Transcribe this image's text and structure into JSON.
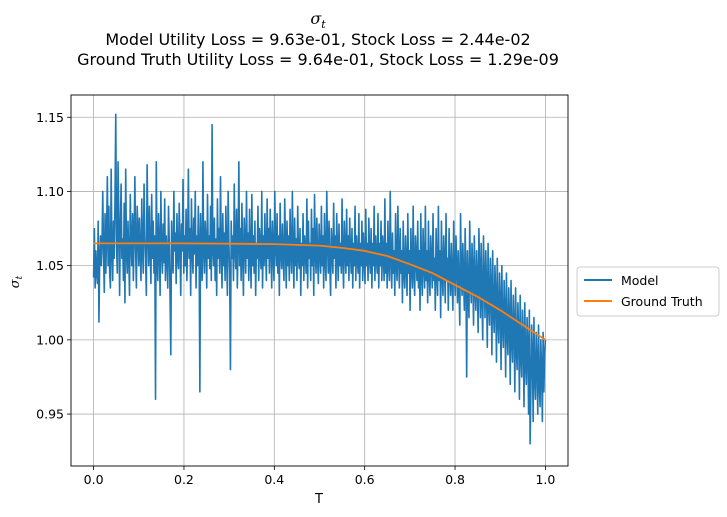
{
  "chart_data": {
    "type": "line",
    "title": "σt",
    "subtitle_lines": [
      "Model Utility Loss = 9.63e-01, Stock Loss = 2.44e-02",
      "Ground Truth Utility Loss = 9.64e-01, Stock Loss = 1.29e-09"
    ],
    "xlabel": "T",
    "ylabel": "σt",
    "xlim": [
      -0.05,
      1.05
    ],
    "ylim": [
      0.915,
      1.165
    ],
    "xticks": [
      0.0,
      0.2,
      0.4,
      0.6,
      0.8,
      1.0
    ],
    "xtick_labels": [
      "0.0",
      "0.2",
      "0.4",
      "0.6",
      "0.8",
      "1.0"
    ],
    "yticks": [
      0.95,
      1.0,
      1.05,
      1.1,
      1.15
    ],
    "ytick_labels": [
      "0.95",
      "1.00",
      "1.05",
      "1.10",
      "1.15"
    ],
    "grid": true,
    "legend_placement": "outside-right",
    "series": [
      {
        "name": "Model",
        "color": "#1f77b4",
        "x_start": 0.0,
        "x_end": 1.0,
        "values": [
          1.042,
          1.075,
          1.035,
          1.06,
          1.045,
          1.038,
          1.08,
          1.012,
          1.055,
          1.07,
          1.05,
          1.065,
          1.1,
          1.058,
          1.032,
          1.085,
          1.045,
          1.072,
          1.11,
          1.05,
          1.09,
          1.045,
          1.035,
          1.115,
          1.06,
          1.04,
          1.08,
          1.055,
          1.095,
          1.152,
          1.065,
          1.045,
          1.12,
          1.085,
          1.03,
          1.075,
          1.105,
          1.055,
          1.068,
          1.04,
          1.092,
          1.025,
          1.115,
          1.06,
          1.045,
          1.08,
          1.055,
          1.03,
          1.098,
          1.065,
          1.05,
          1.085,
          1.04,
          1.07,
          1.11,
          1.06,
          1.035,
          1.09,
          1.075,
          1.05,
          1.082,
          1.058,
          1.04,
          1.095,
          1.06,
          1.045,
          1.105,
          1.07,
          1.055,
          1.03,
          1.118,
          1.075,
          1.05,
          1.09,
          1.06,
          1.038,
          1.098,
          1.055,
          1.08,
          1.045,
          1.07,
          0.96,
          1.12,
          1.055,
          1.04,
          1.085,
          1.065,
          1.03,
          1.1,
          1.06,
          1.045,
          1.078,
          1.052,
          1.095,
          1.04,
          1.07,
          1.058,
          1.035,
          1.09,
          1.065,
          1.03,
          0.99,
          1.08,
          1.055,
          1.045,
          1.1,
          1.06,
          1.072,
          1.038,
          1.085,
          1.055,
          1.048,
          1.092,
          1.065,
          1.03,
          1.078,
          1.06,
          1.108,
          1.045,
          1.07,
          1.05,
          1.088,
          1.04,
          1.065,
          1.115,
          1.055,
          1.075,
          1.03,
          1.095,
          1.06,
          1.045,
          1.082,
          1.058,
          1.1,
          1.035,
          1.07,
          1.05,
          1.09,
          1.065,
          0.965,
          1.085,
          1.055,
          1.04,
          1.12,
          1.06,
          1.045,
          1.08,
          1.065,
          1.035,
          1.098,
          1.055,
          1.07,
          1.048,
          1.09,
          1.04,
          1.145,
          1.06,
          1.05,
          1.082,
          1.04,
          1.068,
          1.03,
          1.095,
          1.055,
          1.075,
          1.045,
          1.11,
          1.06,
          1.035,
          1.085,
          1.05,
          1.072,
          1.04,
          1.09,
          1.058,
          1.03,
          1.1,
          1.065,
          1.045,
          0.98,
          1.08,
          1.055,
          1.07,
          1.04,
          1.105,
          1.06,
          1.048,
          1.088,
          1.035,
          1.065,
          1.12,
          1.05,
          1.075,
          1.04,
          1.092,
          1.058,
          1.03,
          1.082,
          1.065,
          1.045,
          1.1,
          1.055,
          1.072,
          1.04,
          1.088,
          1.06,
          1.035,
          1.098,
          1.05,
          1.07,
          1.045,
          1.08,
          1.03,
          1.065,
          1.055,
          1.09,
          1.04,
          1.075,
          1.06,
          1.048,
          1.1,
          1.035,
          1.07,
          1.05,
          1.085,
          1.06,
          1.04,
          1.095,
          1.055,
          1.075,
          1.045,
          1.088,
          1.065,
          1.035,
          1.08,
          1.058,
          1.04,
          1.1,
          1.062,
          1.05,
          1.085,
          1.045,
          1.07,
          1.03,
          1.092,
          1.06,
          1.048,
          1.078,
          1.055,
          1.04,
          1.095,
          1.065,
          1.035,
          1.08,
          1.05,
          1.07,
          1.04,
          1.088,
          1.058,
          1.045,
          1.1,
          1.06,
          1.035,
          1.082,
          1.05,
          1.068,
          1.04,
          1.09,
          1.055,
          1.048,
          1.075,
          1.03,
          1.065,
          1.05,
          1.085,
          1.04,
          1.07,
          1.06,
          1.045,
          1.095,
          1.035,
          1.08,
          1.055,
          1.065,
          1.04,
          1.088,
          1.05,
          1.075,
          1.03,
          1.098,
          1.06,
          1.045,
          1.082,
          1.055,
          1.038,
          1.078,
          1.06,
          1.045,
          1.09,
          1.05,
          1.07,
          1.035,
          1.085,
          1.055,
          1.04,
          1.1,
          1.065,
          1.045,
          1.08,
          1.05,
          1.03,
          1.075,
          1.06,
          1.045,
          1.092,
          1.055,
          1.07,
          1.035,
          1.085,
          1.06,
          1.04,
          1.078,
          1.05,
          1.065,
          1.045,
          1.095,
          1.055,
          1.035,
          1.08,
          1.06,
          1.045,
          1.088,
          1.05,
          1.07,
          1.04,
          1.082,
          1.058,
          1.045,
          1.075,
          1.035,
          1.065,
          1.05,
          1.09,
          1.04,
          1.07,
          1.055,
          1.045,
          1.085,
          1.035,
          1.065,
          1.05,
          1.08,
          1.04,
          1.072,
          1.055,
          1.038,
          1.088,
          1.05,
          1.065,
          1.04,
          1.082,
          1.055,
          1.045,
          1.075,
          1.035,
          1.065,
          1.05,
          1.09,
          1.04,
          1.07,
          1.055,
          1.045,
          1.085,
          1.035,
          1.065,
          1.05,
          1.08,
          1.04,
          1.07,
          1.058,
          1.04,
          1.095,
          1.045,
          1.065,
          1.035,
          1.08,
          1.05,
          1.04,
          1.1,
          1.055,
          1.035,
          1.072,
          1.045,
          1.06,
          1.03,
          1.085,
          1.05,
          1.04,
          1.09,
          1.055,
          1.035,
          1.075,
          1.045,
          1.06,
          1.025,
          1.08,
          1.045,
          1.035,
          1.07,
          1.05,
          1.03,
          1.085,
          1.045,
          1.06,
          1.02,
          1.075,
          1.05,
          1.035,
          1.09,
          1.045,
          1.03,
          1.07,
          1.055,
          1.04,
          1.08,
          1.035,
          1.06,
          1.02,
          1.085,
          1.045,
          1.03,
          1.075,
          1.05,
          1.035,
          1.09,
          1.04,
          1.06,
          1.025,
          1.08,
          1.045,
          1.03,
          1.07,
          1.05,
          1.035,
          1.085,
          1.04,
          1.055,
          1.02,
          1.075,
          1.045,
          1.03,
          1.09,
          1.04,
          1.06,
          1.015,
          1.08,
          1.045,
          1.03,
          1.07,
          1.05,
          1.025,
          1.085,
          1.04,
          1.055,
          1.02,
          1.075,
          1.045,
          1.03,
          1.065,
          1.04,
          1.02,
          1.08,
          1.045,
          1.03,
          1.07,
          1.05,
          1.025,
          1.06,
          1.035,
          1.01,
          1.085,
          1.045,
          1.03,
          1.065,
          1.04,
          1.02,
          1.075,
          1.045,
          0.975,
          1.06,
          1.035,
          1.015,
          1.08,
          1.04,
          1.025,
          1.065,
          1.045,
          1.01,
          1.07,
          1.035,
          1.02,
          1.06,
          1.04,
          1.005,
          1.075,
          1.045,
          1.015,
          1.065,
          1.03,
          1.0,
          1.07,
          1.04,
          1.015,
          1.06,
          1.035,
          0.995,
          1.065,
          1.025,
          1.01,
          1.055,
          1.035,
          0.99,
          1.06,
          1.02,
          1.005,
          1.05,
          1.03,
          0.985,
          1.055,
          1.015,
          0.998,
          1.045,
          1.025,
          0.98,
          1.05,
          1.01,
          0.995,
          1.04,
          1.02,
          0.975,
          1.045,
          1.005,
          0.99,
          1.035,
          1.015,
          0.97,
          1.04,
          1.0,
          0.985,
          1.03,
          1.01,
          0.965,
          1.035,
          0.995,
          0.98,
          1.025,
          1.005,
          0.96,
          1.03,
          0.99,
          0.975,
          1.02,
          1.0,
          0.955,
          1.025,
          0.985,
          0.97,
          1.015,
          0.995,
          0.95,
          1.02,
          0.93,
          0.965,
          1.01,
          0.99,
          0.945,
          1.015,
          0.975,
          0.96,
          1.005,
          0.985,
          0.95,
          1.01,
          0.97,
          0.955,
          1.0,
          0.98,
          0.945,
          1.005,
          0.965,
          0.99,
          1.0
        ]
      },
      {
        "name": "Ground Truth",
        "color": "#ff7f0e",
        "x": [
          0.0,
          0.1,
          0.2,
          0.3,
          0.4,
          0.5,
          0.55,
          0.6,
          0.65,
          0.7,
          0.75,
          0.8,
          0.85,
          0.9,
          0.95,
          1.0
        ],
        "values": [
          1.065,
          1.065,
          1.065,
          1.0648,
          1.0645,
          1.0635,
          1.062,
          1.06,
          1.0565,
          1.051,
          1.045,
          1.037,
          1.029,
          1.02,
          1.01,
          1.0
        ]
      }
    ]
  }
}
